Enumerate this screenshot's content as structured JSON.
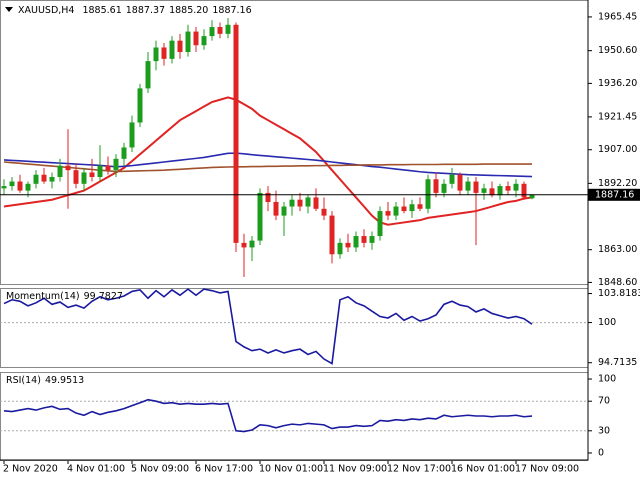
{
  "chart_data": [
    {
      "type": "candlestick",
      "title": "XAUUSD,H4",
      "quote_labels": [
        "1885.61",
        "1887.37",
        "1885.20",
        "1887.16"
      ],
      "categories": [
        "2 Nov 2020",
        null,
        null,
        null,
        null,
        null,
        null,
        null,
        "4 Nov 01:00",
        null,
        null,
        null,
        null,
        null,
        null,
        null,
        "5 Nov 09:00",
        null,
        null,
        null,
        null,
        null,
        null,
        null,
        "6 Nov 17:00",
        null,
        null,
        null,
        null,
        null,
        null,
        null,
        "10 Nov 01:00",
        null,
        null,
        null,
        null,
        null,
        null,
        null,
        "11 Nov 09:00",
        null,
        null,
        null,
        null,
        null,
        null,
        null,
        "12 Nov 17:00",
        null,
        null,
        null,
        null,
        null,
        null,
        null,
        "16 Nov 01:00",
        null,
        null,
        null,
        null,
        null,
        null,
        null,
        "17 Nov 09:00",
        null,
        null
      ],
      "open": [
        1890,
        1891,
        1893,
        1889,
        1892,
        1896,
        1893,
        1895,
        1900,
        1898,
        1892,
        1897,
        1895,
        1900,
        1898,
        1903,
        1908,
        1919,
        1934,
        1946,
        1952,
        1947,
        1955,
        1950,
        1959,
        1953,
        1957,
        1961,
        1958,
        1962,
        1866,
        1864,
        1867,
        1888,
        1884,
        1878,
        1882,
        1885,
        1882,
        1886,
        1881,
        1878,
        1861,
        1866,
        1864,
        1869,
        1866,
        1869,
        1880,
        1878,
        1882,
        1880,
        1883,
        1881,
        1894,
        1888,
        1892,
        1896,
        1889,
        1893,
        1888,
        1890,
        1887,
        1891,
        1889,
        1892,
        1885.61
      ],
      "high": [
        1894,
        1895,
        1896,
        1893,
        1898,
        1899,
        1897,
        1903,
        1916,
        1901,
        1899,
        1903,
        1909,
        1904,
        1905,
        1910,
        1922,
        1936,
        1950,
        1955,
        1954,
        1957,
        1958,
        1962,
        1961,
        1960,
        1964,
        1963,
        1965,
        1963,
        1870,
        1869,
        1890,
        1891,
        1889,
        1884,
        1887,
        1888,
        1887,
        1890,
        1886,
        1880,
        1868,
        1870,
        1871,
        1872,
        1871,
        1882,
        1884,
        1884,
        1886,
        1885,
        1886,
        1896,
        1897,
        1894,
        1899,
        1897,
        1895,
        1895,
        1892,
        1893,
        1892,
        1893,
        1894,
        1893,
        1887.37
      ],
      "low": [
        1887,
        1889,
        1888,
        1886,
        1890,
        1892,
        1890,
        1893,
        1881,
        1890,
        1889,
        1893,
        1893,
        1896,
        1895,
        1900,
        1906,
        1917,
        1932,
        1942,
        1944,
        1945,
        1947,
        1948,
        1950,
        1951,
        1955,
        1956,
        1956,
        1862,
        1851,
        1858,
        1865,
        1880,
        1876,
        1869,
        1878,
        1880,
        1879,
        1880,
        1876,
        1857,
        1859,
        1862,
        1862,
        1864,
        1863,
        1867,
        1876,
        1876,
        1879,
        1877,
        1880,
        1879,
        1886,
        1886,
        1890,
        1887,
        1887,
        1865,
        1885,
        1886,
        1885,
        1887,
        1886,
        1885,
        1885.2
      ],
      "close": [
        1891,
        1893,
        1889,
        1892,
        1896,
        1893,
        1895,
        1900,
        1898,
        1892,
        1897,
        1895,
        1900,
        1898,
        1903,
        1908,
        1919,
        1934,
        1946,
        1952,
        1947,
        1955,
        1950,
        1959,
        1953,
        1957,
        1961,
        1958,
        1962,
        1866,
        1864,
        1867,
        1888,
        1884,
        1878,
        1882,
        1885,
        1882,
        1886,
        1881,
        1878,
        1861,
        1866,
        1864,
        1869,
        1866,
        1869,
        1880,
        1878,
        1882,
        1880,
        1883,
        1881,
        1894,
        1888,
        1892,
        1896,
        1889,
        1893,
        1888,
        1890,
        1887,
        1891,
        1889,
        1892,
        1886,
        1887.16
      ],
      "up_color": "#1c9c1c",
      "down_color": "#e02323",
      "series": [
        {
          "color": "#e02323",
          "values": [
            1882,
            1882.5,
            1883,
            1883.5,
            1884,
            1884.5,
            1885,
            1886,
            1887,
            1888,
            1889,
            1891,
            1893,
            1895,
            1897,
            1899,
            1902,
            1905,
            1908,
            1911,
            1914,
            1917,
            1920,
            1922,
            1924,
            1926,
            1928,
            1929,
            1930,
            1929,
            1927,
            1925,
            1922,
            1920,
            1918,
            1916,
            1914,
            1912,
            1909,
            1906,
            1902,
            1898,
            1894,
            1890,
            1886,
            1882,
            1878,
            1875,
            1874,
            1874.5,
            1875,
            1875.5,
            1876,
            1877,
            1877.5,
            1878,
            1878.5,
            1879,
            1879.5,
            1880,
            1881,
            1882,
            1883,
            1884,
            1884.5,
            1885.5,
            1886
          ]
        },
        {
          "color": "#2a2ab0",
          "values": [
            1902.5,
            1902.3,
            1902.1,
            1901.9,
            1901.7,
            1901.5,
            1901.3,
            1901.1,
            1900.9,
            1900.7,
            1900.5,
            1900.3,
            1900.1,
            1899.8,
            1899.5,
            1899.7,
            1900,
            1900.4,
            1900.8,
            1901.2,
            1901.6,
            1902,
            1902.4,
            1902.8,
            1903.2,
            1903.6,
            1904.2,
            1904.8,
            1905.4,
            1905.5,
            1905.2,
            1904.8,
            1904.5,
            1904.2,
            1903.9,
            1903.6,
            1903.3,
            1903,
            1902.7,
            1902.4,
            1902,
            1901.6,
            1901.2,
            1900.8,
            1900.4,
            1900,
            1899.6,
            1899.3,
            1898.9,
            1898.5,
            1898.1,
            1897.7,
            1897.3,
            1897,
            1896.8,
            1896.6,
            1896.4,
            1896.2,
            1896,
            1895.9,
            1895.8,
            1895.7,
            1895.6,
            1895.5,
            1895.4,
            1895.3,
            1895.2
          ]
        },
        {
          "color": "#a0522d",
          "values": [
            1901.6,
            1901.3,
            1901,
            1900.7,
            1900.4,
            1900.1,
            1899.8,
            1899.5,
            1899.2,
            1898.9,
            1898.6,
            1898.3,
            1898,
            1897.7,
            1897.4,
            1897.5,
            1897.6,
            1897.7,
            1897.8,
            1897.9,
            1898,
            1898.2,
            1898.4,
            1898.6,
            1898.8,
            1899,
            1899.2,
            1899.3,
            1899.4,
            1899.5,
            1899.5,
            1899.6,
            1899.6,
            1899.7,
            1899.7,
            1899.8,
            1899.8,
            1899.9,
            1899.9,
            1900,
            1900,
            1900.1,
            1900.1,
            1900.2,
            1900.2,
            1900.3,
            1900.3,
            1900.3,
            1900.4,
            1900.4,
            1900.4,
            1900.5,
            1900.5,
            1900.5,
            1900.5,
            1900.6,
            1900.6,
            1900.6,
            1900.6,
            1900.6,
            1900.7,
            1900.7,
            1900.7,
            1900.7,
            1900.7,
            1900.7,
            1900.7
          ]
        }
      ],
      "ylim": [
        1847.9,
        1972.9
      ],
      "yticks": [
        1965.45,
        {
          "value": 1950.6,
          "label": "1950.60"
        },
        {
          "value": 1936.2,
          "label": "1936.20"
        },
        1921.45,
        {
          "value": 1907,
          "label": "1907.00"
        },
        {
          "value": 1892.2,
          "label": "1892.20"
        },
        {
          "value": 1863,
          "label": "1863.00"
        },
        {
          "value": 1848.6,
          "label": "1848.60"
        }
      ]
    },
    {
      "type": "line",
      "title": "Momentum(14)",
      "color": "#1a1aa0",
      "values": [
        102.5,
        103,
        102.8,
        102.2,
        102.6,
        103.2,
        102.4,
        102.7,
        102,
        102.3,
        101.9,
        102.8,
        103.4,
        103,
        103.2,
        103.5,
        104.1,
        104.3,
        103.2,
        104.2,
        103.4,
        104.3,
        103.6,
        104.4,
        103.6,
        104.4,
        104.2,
        103.9,
        104.1,
        97.5,
        96.8,
        96.3,
        96.5,
        96,
        96.4,
        96,
        96.3,
        96.5,
        95.8,
        96.2,
        95.2,
        94.6,
        103,
        103.4,
        102.6,
        102.2,
        101.5,
        100.8,
        100.6,
        101.2,
        100.3,
        100.8,
        100.2,
        100.5,
        101,
        102.4,
        102.8,
        102.3,
        102.1,
        101.4,
        101.8,
        101.2,
        100.9,
        100.6,
        100.8,
        100.5,
        99.7827
      ],
      "ylim": [
        94.15,
        104.55
      ],
      "yticks": [
        103.8183,
        100,
        94.7135
      ],
      "levels": [
        100
      ]
    },
    {
      "type": "line",
      "title": "RSI(14)",
      "color": "#1a1aa0",
      "values": [
        57,
        56,
        58,
        60,
        58,
        61,
        63,
        59,
        60,
        54,
        51,
        56,
        52,
        55,
        57,
        60,
        64,
        68,
        72,
        70,
        67,
        68,
        66,
        67,
        66,
        66,
        67,
        66,
        67,
        30,
        29,
        31,
        38,
        37,
        34,
        37,
        39,
        38,
        40,
        39,
        38,
        33,
        35,
        35,
        37,
        36,
        37,
        44,
        43,
        45,
        44,
        46,
        45,
        47,
        46,
        51,
        49,
        50,
        51,
        50,
        50,
        49,
        50,
        50,
        51,
        49,
        49.9513
      ],
      "ylim": [
        -9.5,
        109.5
      ],
      "yticks": [
        100,
        70,
        30,
        0
      ],
      "levels": [
        70,
        30
      ]
    }
  ]
}
